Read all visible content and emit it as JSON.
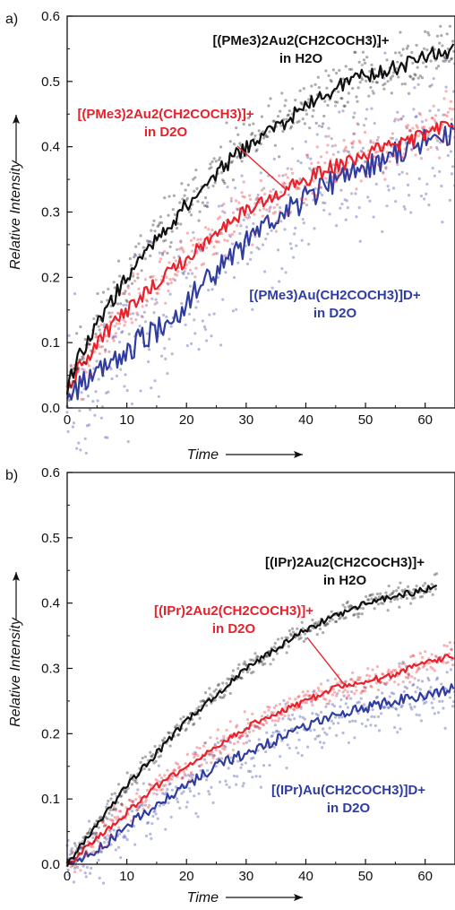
{
  "colors": {
    "black_series": "#111111",
    "red_series": "#e8212b",
    "blue_series": "#2f3da0"
  },
  "chart_data": [
    {
      "panel_label": "a)",
      "type": "line",
      "xlabel": "Time",
      "ylabel": "Relative Intensity",
      "xlim": [
        0,
        65
      ],
      "ylim": [
        0,
        0.6
      ],
      "x_ticks": [
        0,
        10,
        20,
        30,
        40,
        50,
        60
      ],
      "y_ticks": [
        "0.0",
        "0.1",
        "0.2",
        "0.3",
        "0.4",
        "0.5",
        "0.6"
      ],
      "grid": false,
      "series": [
        {
          "name": "[(PMe3)2Au2(CH2COCH3)]+ in H2O",
          "color": "#111111",
          "x": [
            0,
            2,
            5,
            10,
            15,
            20,
            25,
            30,
            35,
            40,
            45,
            50,
            55,
            60,
            65
          ],
          "y": [
            0.03,
            0.08,
            0.13,
            0.2,
            0.26,
            0.31,
            0.36,
            0.4,
            0.43,
            0.46,
            0.49,
            0.51,
            0.52,
            0.54,
            0.55
          ]
        },
        {
          "name": "[(PMe3)2Au2(CH2COCH3)]+ in D2O",
          "color": "#e8212b",
          "x": [
            0,
            2,
            5,
            10,
            15,
            20,
            25,
            30,
            35,
            40,
            45,
            50,
            55,
            60,
            65
          ],
          "y": [
            0.03,
            0.06,
            0.1,
            0.15,
            0.19,
            0.23,
            0.27,
            0.3,
            0.33,
            0.35,
            0.37,
            0.39,
            0.4,
            0.42,
            0.44
          ]
        },
        {
          "name": "[(PMe3)Au(CH2COCH3)]D+ in D2O",
          "color": "#2f3da0",
          "x": [
            0,
            2,
            5,
            10,
            15,
            20,
            25,
            30,
            35,
            40,
            45,
            50,
            55,
            60,
            65
          ],
          "y": [
            0.02,
            0.03,
            0.05,
            0.09,
            0.12,
            0.16,
            0.21,
            0.25,
            0.29,
            0.32,
            0.35,
            0.37,
            0.39,
            0.41,
            0.42
          ]
        }
      ]
    },
    {
      "panel_label": "b)",
      "type": "line",
      "xlabel": "Time",
      "ylabel": "Relative Intensity",
      "xlim": [
        0,
        65
      ],
      "ylim": [
        0,
        0.6
      ],
      "x_ticks": [
        0,
        10,
        20,
        30,
        40,
        50,
        60
      ],
      "y_ticks": [
        "0.0",
        "0.1",
        "0.2",
        "0.3",
        "0.4",
        "0.5",
        "0.6"
      ],
      "grid": false,
      "series": [
        {
          "name": "[(IPr)2Au2(CH2COCH3)]+ in H2O",
          "color": "#111111",
          "x": [
            0,
            5,
            10,
            15,
            20,
            25,
            30,
            35,
            40,
            45,
            50,
            55,
            60,
            62
          ],
          "y": [
            0.0,
            0.06,
            0.12,
            0.17,
            0.22,
            0.26,
            0.3,
            0.33,
            0.36,
            0.38,
            0.4,
            0.41,
            0.42,
            0.43
          ]
        },
        {
          "name": "[(IPr)2Au2(CH2COCH3)]+ in D2O",
          "color": "#e8212b",
          "x": [
            0,
            5,
            10,
            15,
            20,
            25,
            30,
            35,
            40,
            45,
            50,
            55,
            60,
            65
          ],
          "y": [
            0.0,
            0.04,
            0.08,
            0.12,
            0.15,
            0.18,
            0.21,
            0.23,
            0.25,
            0.27,
            0.28,
            0.29,
            0.31,
            0.32
          ]
        },
        {
          "name": "[(IPr)Au(CH2COCH3)]D+ in D2O",
          "color": "#2f3da0",
          "x": [
            0,
            5,
            10,
            15,
            20,
            25,
            30,
            35,
            40,
            45,
            50,
            55,
            60,
            65
          ],
          "y": [
            0.0,
            0.02,
            0.06,
            0.09,
            0.12,
            0.15,
            0.17,
            0.19,
            0.21,
            0.23,
            0.24,
            0.25,
            0.26,
            0.27
          ]
        }
      ]
    }
  ],
  "annotations": {
    "a_black": {
      "line1": "[(PMe3)2Au2(CH2COCH3)]+",
      "line2": "in H2O"
    },
    "a_red": {
      "line1": "[(PMe3)2Au2(CH2COCH3)]+",
      "line2": "in D2O"
    },
    "a_blue": {
      "line1": "[(PMe3)Au(CH2COCH3)]D+",
      "line2": "in D2O"
    },
    "b_black": {
      "line1": "[(IPr)2Au2(CH2COCH3)]+",
      "line2": "in H2O"
    },
    "b_red": {
      "line1": "[(IPr)2Au2(CH2COCH3)]+",
      "line2": "in D2O"
    },
    "b_blue": {
      "line1": "[(IPr)Au(CH2COCH3)]D+",
      "line2": "in D2O"
    }
  }
}
